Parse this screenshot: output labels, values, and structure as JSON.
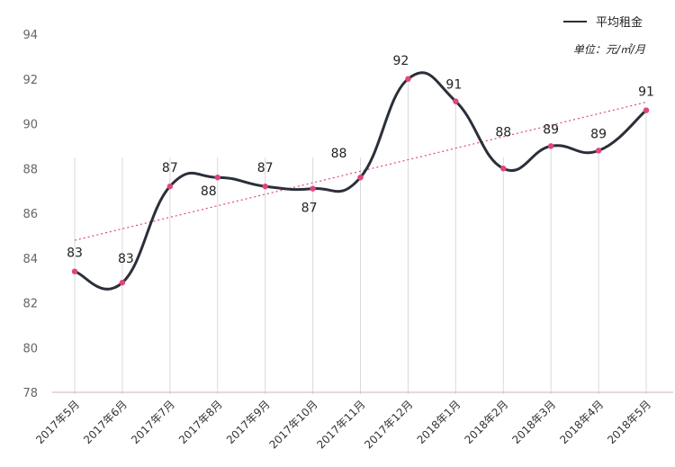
{
  "chart_data": {
    "type": "line",
    "categories": [
      "2017年5月",
      "2017年6月",
      "2017年7月",
      "2017年8月",
      "2017年9月",
      "2017年10月",
      "2017年11月",
      "2017年12月",
      "2018年1月",
      "2018年2月",
      "2018年3月",
      "2018年4月",
      "2018年5月"
    ],
    "series": [
      {
        "name": "平均租金",
        "values": [
          83.4,
          82.9,
          87.2,
          87.6,
          87.2,
          87.1,
          87.6,
          92.0,
          91.0,
          88.0,
          89.0,
          88.8,
          90.6
        ],
        "data_labels": [
          "83",
          "83",
          "87",
          "88",
          "87",
          "87",
          "88",
          "92",
          "91",
          "88",
          "89",
          "89",
          "91"
        ],
        "color": "#2a2f3a"
      }
    ],
    "trendline": {
      "color": "#e0457b",
      "style": "dotted"
    },
    "marker_color": "#e0457b",
    "yticks": [
      "78",
      "80",
      "82",
      "84",
      "86",
      "88",
      "90",
      "92",
      "94"
    ],
    "ylim": [
      78,
      94
    ],
    "unit_label": "单位：元/㎡/月",
    "legend": "top-right",
    "grid": "vertical-drop-lines"
  }
}
